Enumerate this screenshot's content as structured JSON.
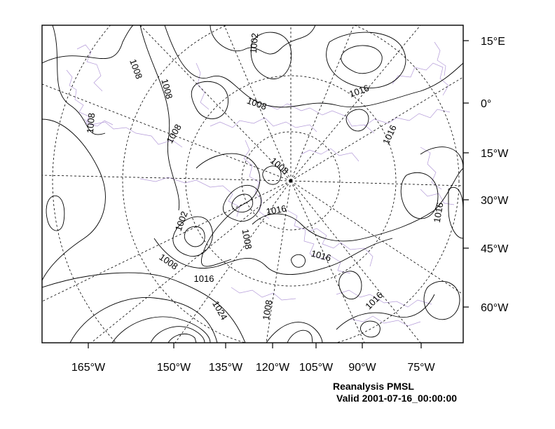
{
  "footer": {
    "line1": "Reanalysis PMSL",
    "line2": "Valid 2001-07-16_00:00:00"
  },
  "axes": {
    "bottom_labels": [
      "165°W",
      "150°W",
      "135°W",
      "120°W",
      "105°W",
      "90°W",
      "75°W"
    ],
    "right_labels": [
      "15°E",
      "0°",
      "15°W",
      "30°W",
      "45°W",
      "60°W"
    ]
  },
  "contour_labels": [
    "1008",
    "1008",
    "1002",
    "1016",
    "1008",
    "1008",
    "1008",
    "1016",
    "1008",
    "1002",
    "1016",
    "1008",
    "1016",
    "1016",
    "1016",
    "1008",
    "1024",
    "1008",
    "1016"
  ],
  "colors": {
    "contour": "#000000",
    "coastline": "#b39ad8",
    "gridline": "#000000",
    "background": "#ffffff"
  }
}
